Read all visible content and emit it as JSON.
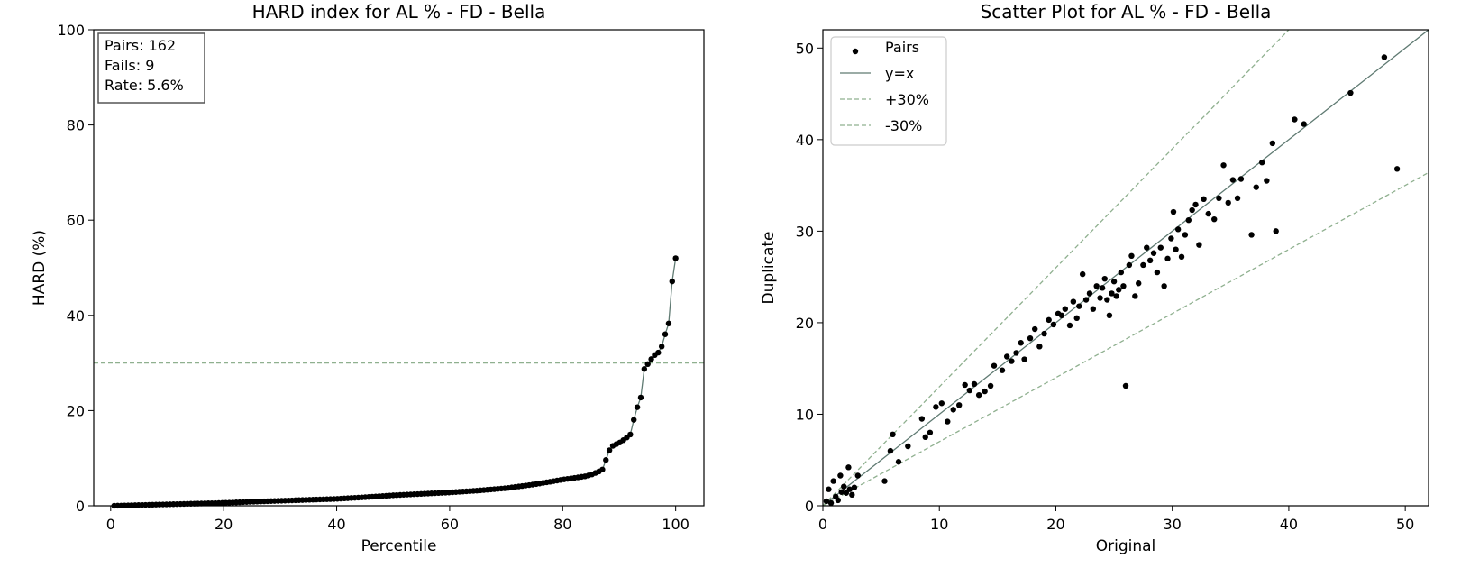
{
  "chart_data": [
    {
      "type": "line",
      "title": "HARD index for AL % - FD - Bella",
      "xlabel": "Percentile",
      "ylabel": "HARD (%)",
      "xlim": [
        -3,
        105
      ],
      "ylim": [
        0,
        100
      ],
      "xticks": [
        0,
        20,
        40,
        60,
        80,
        100
      ],
      "yticks": [
        0,
        20,
        40,
        60,
        80,
        100
      ],
      "threshold": 30,
      "stats": [
        "Pairs: 162",
        "Fails: 9",
        "Rate: 5.6%"
      ],
      "curve": [
        [
          0.6,
          0.0
        ],
        [
          5,
          0.15
        ],
        [
          10,
          0.3
        ],
        [
          15,
          0.45
        ],
        [
          20,
          0.6
        ],
        [
          25,
          0.85
        ],
        [
          30,
          1.05
        ],
        [
          35,
          1.25
        ],
        [
          40,
          1.45
        ],
        [
          45,
          1.8
        ],
        [
          50,
          2.2
        ],
        [
          55,
          2.5
        ],
        [
          60,
          2.8
        ],
        [
          65,
          3.2
        ],
        [
          70,
          3.7
        ],
        [
          75,
          4.5
        ],
        [
          80,
          5.5
        ],
        [
          84,
          6.2
        ],
        [
          85,
          6.5
        ],
        [
          86,
          7.0
        ],
        [
          87,
          7.5
        ],
        [
          87.5,
          9.0
        ],
        [
          88,
          11.0
        ],
        [
          88.5,
          12.2
        ],
        [
          89,
          12.7
        ],
        [
          90,
          13.2
        ],
        [
          91,
          14.0
        ],
        [
          92,
          15.0
        ],
        [
          92.5,
          17.5
        ],
        [
          93,
          20.5
        ],
        [
          93.7,
          21.2
        ],
        [
          94.3,
          28.5
        ],
        [
          94.9,
          29.5
        ],
        [
          95.5,
          30.5
        ],
        [
          96.1,
          31.5
        ],
        [
          96.7,
          32.0
        ],
        [
          97.3,
          32.5
        ],
        [
          97.9,
          35.0
        ],
        [
          98.5,
          37.5
        ],
        [
          99.0,
          39.0
        ],
        [
          99.4,
          47.5
        ],
        [
          100,
          52.0
        ]
      ]
    },
    {
      "type": "scatter",
      "title": "Scatter Plot for AL % - FD - Bella",
      "xlabel": "Original",
      "ylabel": "Duplicate",
      "xlim": [
        0,
        52
      ],
      "ylim": [
        0,
        52
      ],
      "xticks": [
        0,
        10,
        20,
        30,
        40,
        50
      ],
      "yticks": [
        0,
        10,
        20,
        30,
        40,
        50
      ],
      "legend": [
        "Pairs",
        "y=x",
        "+30%",
        "-30%"
      ],
      "legend_position": "top-left",
      "points": [
        [
          0.3,
          0.5
        ],
        [
          0.5,
          1.8
        ],
        [
          0.7,
          0.3
        ],
        [
          0.9,
          2.7
        ],
        [
          1.1,
          1.0
        ],
        [
          1.3,
          0.6
        ],
        [
          1.5,
          3.3
        ],
        [
          1.6,
          1.5
        ],
        [
          1.8,
          2.1
        ],
        [
          2.0,
          1.4
        ],
        [
          2.2,
          4.2
        ],
        [
          2.3,
          1.8
        ],
        [
          2.5,
          1.2
        ],
        [
          2.7,
          2.0
        ],
        [
          3.0,
          3.3
        ],
        [
          5.3,
          2.7
        ],
        [
          5.8,
          6.0
        ],
        [
          6.0,
          7.8
        ],
        [
          6.5,
          4.8
        ],
        [
          7.3,
          6.5
        ],
        [
          8.5,
          9.5
        ],
        [
          8.8,
          7.5
        ],
        [
          9.2,
          8.0
        ],
        [
          9.7,
          10.8
        ],
        [
          10.2,
          11.2
        ],
        [
          10.7,
          9.2
        ],
        [
          11.2,
          10.5
        ],
        [
          11.7,
          11.0
        ],
        [
          12.2,
          13.2
        ],
        [
          12.6,
          12.6
        ],
        [
          13.0,
          13.3
        ],
        [
          13.4,
          12.1
        ],
        [
          13.9,
          12.5
        ],
        [
          14.4,
          13.1
        ],
        [
          14.7,
          15.3
        ],
        [
          15.4,
          14.8
        ],
        [
          15.8,
          16.3
        ],
        [
          16.2,
          15.8
        ],
        [
          16.6,
          16.7
        ],
        [
          17.0,
          17.8
        ],
        [
          17.3,
          16.0
        ],
        [
          17.8,
          18.3
        ],
        [
          18.2,
          19.3
        ],
        [
          18.6,
          17.4
        ],
        [
          19.0,
          18.8
        ],
        [
          19.4,
          20.3
        ],
        [
          19.8,
          19.8
        ],
        [
          20.2,
          21.0
        ],
        [
          20.5,
          20.8
        ],
        [
          20.8,
          21.5
        ],
        [
          21.2,
          19.7
        ],
        [
          21.5,
          22.3
        ],
        [
          21.8,
          20.5
        ],
        [
          22.0,
          21.8
        ],
        [
          22.3,
          25.3
        ],
        [
          22.6,
          22.5
        ],
        [
          22.9,
          23.2
        ],
        [
          23.2,
          21.5
        ],
        [
          23.5,
          24.0
        ],
        [
          23.8,
          22.7
        ],
        [
          24.0,
          23.8
        ],
        [
          24.2,
          24.8
        ],
        [
          24.4,
          22.5
        ],
        [
          24.6,
          20.8
        ],
        [
          24.8,
          23.2
        ],
        [
          25.0,
          24.5
        ],
        [
          25.2,
          22.9
        ],
        [
          25.4,
          23.6
        ],
        [
          25.6,
          25.5
        ],
        [
          25.8,
          24.0
        ],
        [
          26.0,
          13.1
        ],
        [
          26.3,
          26.3
        ],
        [
          26.5,
          27.3
        ],
        [
          26.8,
          22.9
        ],
        [
          27.1,
          24.3
        ],
        [
          27.5,
          26.3
        ],
        [
          27.8,
          28.2
        ],
        [
          28.1,
          26.8
        ],
        [
          28.4,
          27.6
        ],
        [
          28.7,
          25.5
        ],
        [
          29.0,
          28.2
        ],
        [
          29.3,
          24.0
        ],
        [
          29.6,
          27.0
        ],
        [
          29.9,
          29.2
        ],
        [
          30.1,
          32.1
        ],
        [
          30.3,
          28.0
        ],
        [
          30.5,
          30.2
        ],
        [
          30.8,
          27.2
        ],
        [
          31.1,
          29.6
        ],
        [
          31.4,
          31.2
        ],
        [
          31.7,
          32.3
        ],
        [
          32.0,
          32.9
        ],
        [
          32.3,
          28.5
        ],
        [
          32.7,
          33.5
        ],
        [
          33.1,
          31.9
        ],
        [
          33.6,
          31.3
        ],
        [
          34.0,
          33.6
        ],
        [
          34.4,
          37.2
        ],
        [
          34.8,
          33.1
        ],
        [
          35.2,
          35.6
        ],
        [
          35.6,
          33.6
        ],
        [
          35.9,
          35.7
        ],
        [
          36.8,
          29.6
        ],
        [
          37.2,
          34.8
        ],
        [
          37.7,
          37.5
        ],
        [
          38.1,
          35.5
        ],
        [
          38.6,
          39.6
        ],
        [
          38.9,
          30.0
        ],
        [
          40.5,
          42.2
        ],
        [
          41.3,
          41.7
        ],
        [
          45.3,
          45.1
        ],
        [
          48.2,
          49.0
        ],
        [
          49.3,
          36.8
        ]
      ]
    }
  ]
}
